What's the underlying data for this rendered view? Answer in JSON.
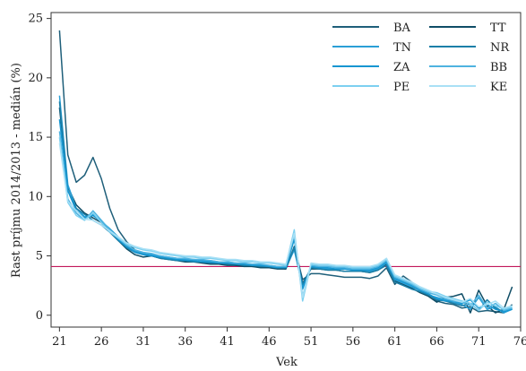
{
  "chart_data": {
    "type": "line",
    "xlabel": "Vek",
    "ylabel": "Rast príjmu 2014/2013 - medián (%)",
    "xlim": [
      20,
      76
    ],
    "ylim": [
      -1,
      25.5
    ],
    "xticks": [
      21,
      26,
      31,
      36,
      41,
      46,
      51,
      56,
      61,
      66,
      71,
      76
    ],
    "xtick_labels": [
      "21",
      "26",
      "31",
      "36",
      "41",
      "46",
      "51",
      "56",
      "61",
      "66",
      "71",
      "76"
    ],
    "yticks": [
      0,
      5,
      10,
      15,
      20,
      25
    ],
    "ytick_labels": [
      "0",
      "5",
      "10",
      "15",
      "20",
      "25"
    ],
    "reference_line": {
      "y": 4.1,
      "color": "#c2185b"
    },
    "legend": {
      "position": "top-right",
      "columns": 2
    },
    "x": [
      21,
      22,
      23,
      24,
      25,
      26,
      27,
      28,
      29,
      30,
      31,
      32,
      33,
      34,
      35,
      36,
      37,
      38,
      39,
      40,
      41,
      42,
      43,
      44,
      45,
      46,
      47,
      48,
      49,
      50,
      51,
      52,
      53,
      54,
      55,
      56,
      57,
      58,
      59,
      60,
      61,
      62,
      63,
      64,
      65,
      66,
      67,
      68,
      69,
      70,
      71,
      72,
      73,
      74,
      75
    ],
    "series": [
      {
        "name": "BA",
        "color": "#1f5f7a",
        "values": [
          24.0,
          13.5,
          11.2,
          11.8,
          13.3,
          11.5,
          9.0,
          7.2,
          6.2,
          5.5,
          5.2,
          5.0,
          4.9,
          4.8,
          4.7,
          4.6,
          4.5,
          4.5,
          4.4,
          4.3,
          4.3,
          4.2,
          4.2,
          4.1,
          4.1,
          4.0,
          4.0,
          3.9,
          5.8,
          3.0,
          3.5,
          3.5,
          3.4,
          3.3,
          3.2,
          3.2,
          3.2,
          3.1,
          3.3,
          4.0,
          2.6,
          3.3,
          2.8,
          2.1,
          1.8,
          1.2,
          1.0,
          0.9,
          0.6,
          0.7,
          0.3,
          0.4,
          0.3,
          0.2,
          0.9
        ]
      },
      {
        "name": "TT",
        "color": "#0f4d66",
        "values": [
          17.5,
          10.8,
          9.3,
          8.6,
          8.2,
          7.8,
          7.0,
          6.3,
          5.6,
          5.1,
          4.9,
          5.0,
          4.8,
          4.7,
          4.6,
          4.5,
          4.5,
          4.4,
          4.3,
          4.3,
          4.2,
          4.2,
          4.1,
          4.1,
          4.0,
          4.0,
          3.9,
          3.9,
          5.6,
          2.7,
          3.9,
          3.9,
          3.8,
          3.8,
          3.7,
          3.7,
          3.7,
          3.6,
          3.8,
          4.3,
          2.9,
          2.6,
          2.3,
          1.9,
          1.6,
          1.1,
          1.5,
          1.6,
          1.8,
          0.2,
          2.1,
          0.8,
          0.2,
          0.5,
          2.4
        ]
      },
      {
        "name": "TN",
        "color": "#2a9fd6",
        "values": [
          18.5,
          11.0,
          9.0,
          8.3,
          8.5,
          7.9,
          7.3,
          6.6,
          5.9,
          5.4,
          5.2,
          5.1,
          5.0,
          4.9,
          4.8,
          4.7,
          4.7,
          4.6,
          4.6,
          4.5,
          4.5,
          4.4,
          4.3,
          4.3,
          4.2,
          4.2,
          4.1,
          4.0,
          5.5,
          2.4,
          4.0,
          4.0,
          3.9,
          3.9,
          3.9,
          3.8,
          3.8,
          3.7,
          3.9,
          4.4,
          3.0,
          2.7,
          2.4,
          2.1,
          1.7,
          1.5,
          1.3,
          1.1,
          0.9,
          0.5,
          1.5,
          0.5,
          0.7,
          0.2,
          0.5
        ]
      },
      {
        "name": "NR",
        "color": "#1a7fa8",
        "values": [
          18.0,
          10.5,
          9.0,
          8.5,
          8.0,
          7.6,
          7.0,
          6.3,
          5.7,
          5.3,
          5.1,
          5.0,
          4.8,
          4.7,
          4.6,
          4.6,
          4.5,
          4.5,
          4.4,
          4.4,
          4.3,
          4.3,
          4.2,
          4.2,
          4.1,
          4.1,
          4.0,
          4.0,
          5.7,
          2.6,
          4.0,
          3.9,
          3.8,
          3.8,
          3.7,
          3.7,
          3.7,
          3.6,
          3.8,
          4.2,
          2.8,
          2.5,
          2.2,
          2.0,
          1.7,
          1.3,
          1.2,
          1.0,
          0.8,
          1.0,
          0.4,
          1.3,
          0.6,
          0.3,
          0.6
        ]
      },
      {
        "name": "ZA",
        "color": "#1596d1",
        "values": [
          16.5,
          10.5,
          8.8,
          8.2,
          8.4,
          7.9,
          7.2,
          6.4,
          5.8,
          5.3,
          5.1,
          5.0,
          4.9,
          4.8,
          4.7,
          4.6,
          4.6,
          4.5,
          4.5,
          4.4,
          4.4,
          4.3,
          4.3,
          4.2,
          4.2,
          4.1,
          4.0,
          4.0,
          6.4,
          2.2,
          4.1,
          4.0,
          4.0,
          3.9,
          3.9,
          3.8,
          3.8,
          3.8,
          4.0,
          4.5,
          3.1,
          2.8,
          2.5,
          2.1,
          1.8,
          1.4,
          1.2,
          1.2,
          1.0,
          1.3,
          0.6,
          0.9,
          0.5,
          0.3,
          0.5
        ]
      },
      {
        "name": "BB",
        "color": "#4fb3e0",
        "values": [
          15.5,
          9.8,
          8.6,
          8.0,
          8.8,
          8.0,
          7.2,
          6.5,
          5.9,
          5.5,
          5.3,
          5.2,
          5.0,
          4.9,
          4.8,
          4.8,
          4.7,
          4.7,
          4.6,
          4.5,
          4.5,
          4.4,
          4.4,
          4.3,
          4.3,
          4.2,
          4.1,
          4.1,
          6.8,
          1.6,
          4.2,
          4.1,
          4.1,
          4.0,
          4.0,
          3.9,
          3.9,
          3.9,
          4.1,
          4.6,
          3.2,
          2.9,
          2.6,
          2.2,
          1.9,
          1.7,
          1.4,
          1.2,
          1.1,
          0.8,
          1.7,
          0.6,
          1.0,
          0.4,
          0.6
        ]
      },
      {
        "name": "PE",
        "color": "#7dd0f0",
        "values": [
          15.0,
          9.5,
          8.4,
          8.0,
          8.6,
          7.8,
          7.0,
          6.5,
          6.0,
          5.7,
          5.5,
          5.4,
          5.2,
          5.1,
          5.0,
          4.9,
          4.9,
          4.8,
          4.8,
          4.7,
          4.6,
          4.6,
          4.5,
          4.5,
          4.4,
          4.4,
          4.3,
          4.2,
          7.2,
          1.2,
          4.3,
          4.2,
          4.2,
          4.1,
          4.1,
          4.0,
          4.0,
          4.0,
          4.2,
          4.7,
          3.3,
          3.0,
          2.7,
          2.3,
          2.0,
          1.9,
          1.6,
          1.4,
          1.2,
          1.0,
          0.4,
          1.1,
          0.8,
          0.5,
          0.7
        ]
      },
      {
        "name": "KE",
        "color": "#a9e0f5",
        "values": [
          14.5,
          9.6,
          8.8,
          8.1,
          8.0,
          7.6,
          7.1,
          6.6,
          6.1,
          5.8,
          5.6,
          5.5,
          5.3,
          5.2,
          5.1,
          5.0,
          5.0,
          4.9,
          4.9,
          4.8,
          4.7,
          4.7,
          4.6,
          4.6,
          4.5,
          4.5,
          4.4,
          4.3,
          6.9,
          1.5,
          4.4,
          4.3,
          4.3,
          4.2,
          4.2,
          4.1,
          4.1,
          4.1,
          4.3,
          4.8,
          3.4,
          3.1,
          2.8,
          2.4,
          2.1,
          1.8,
          1.5,
          1.3,
          1.1,
          1.4,
          0.7,
          0.9,
          1.2,
          0.6,
          0.8
        ]
      }
    ]
  }
}
